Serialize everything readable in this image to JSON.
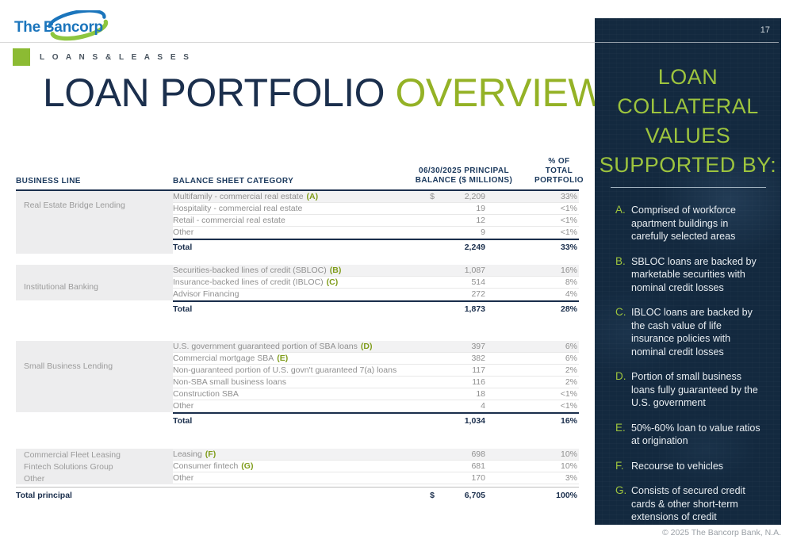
{
  "brand": {
    "logo_the": "The",
    "logo_bancorp": "Bancorp"
  },
  "page_number": "17",
  "section": {
    "label": "L O A N S   &   L E A S E S"
  },
  "title": {
    "part1": "LOAN PORTFOLIO",
    "part2": "OVERVIEW"
  },
  "table": {
    "headers": {
      "business_line": "BUSINESS LINE",
      "balance_sheet_category": "BALANCE SHEET CATEGORY",
      "principal_line1": "06/30/2025 PRINCIPAL",
      "principal_line2": "BALANCE ($ MILLIONS)",
      "pct_line1": "% OF TOTAL",
      "pct_line2": "PORTFOLIO"
    },
    "groups": [
      {
        "business": "Real Estate Bridge Lending",
        "gray_short": false,
        "rows": [
          {
            "category": "Multifamily - commercial real estate",
            "marker": "(A)",
            "currency": "$",
            "value": "2,209",
            "pct": "33%",
            "striped": true
          },
          {
            "category": "Hospitality - commercial real estate",
            "value": "19",
            "pct": "<1%"
          },
          {
            "category": "Retail - commercial real estate",
            "value": "12",
            "pct": "<1%"
          },
          {
            "category": "Other",
            "value": "9",
            "pct": "<1%"
          }
        ],
        "total": {
          "label": "Total",
          "value": "2,249",
          "pct": "33%"
        }
      },
      {
        "business": "Institutional Banking",
        "gray_short": true,
        "rows": [
          {
            "category": "Securities-backed lines of credit (SBLOC)",
            "marker": "(B)",
            "value": "1,087",
            "pct": "16%",
            "striped": true
          },
          {
            "category": "Insurance-backed lines of credit (IBLOC)",
            "marker": "(C)",
            "value": "514",
            "pct": "8%"
          },
          {
            "category": "Advisor Financing",
            "value": "272",
            "pct": "4%"
          }
        ],
        "total": {
          "label": "Total",
          "value": "1,873",
          "pct": "28%"
        }
      },
      {
        "business": "Small Business Lending",
        "gray_short": true,
        "rows": [
          {
            "category": "U.S. government guaranteed portion of SBA loans",
            "marker": "(D)",
            "value": "397",
            "pct": "6%",
            "striped": true
          },
          {
            "category": "Commercial mortgage SBA",
            "marker": "(E)",
            "value": "382",
            "pct": "6%"
          },
          {
            "category": "Non-guaranteed portion of U.S. govn't guaranteed 7(a) loans",
            "value": "117",
            "pct": "2%"
          },
          {
            "category": "Non-SBA small business loans",
            "value": "116",
            "pct": "2%"
          },
          {
            "category": "Construction SBA",
            "value": "18",
            "pct": "<1%"
          },
          {
            "category": "Other",
            "value": "4",
            "pct": "<1%"
          }
        ],
        "total": {
          "label": "Total",
          "value": "1,034",
          "pct": "16%"
        }
      },
      {
        "rows": [
          {
            "business": "Commercial Fleet Leasing",
            "category": "Leasing",
            "marker": "(F)",
            "value": "698",
            "pct": "10%",
            "striped": true
          },
          {
            "business": "Fintech Solutions Group",
            "category": "Consumer fintech",
            "marker": "(G)",
            "value": "681",
            "pct": "10%"
          },
          {
            "business": "Other",
            "category": "Other",
            "value": "170",
            "pct": "3%"
          }
        ]
      }
    ],
    "grand_total": {
      "label": "Total principal",
      "currency": "$",
      "value": "6,705",
      "pct": "100%"
    }
  },
  "sidebar": {
    "title_lines": [
      "LOAN",
      "COLLATERAL",
      "VALUES",
      "SUPPORTED BY:"
    ],
    "items": [
      {
        "letter": "A.",
        "text": "Comprised of workforce apartment buildings in carefully selected areas"
      },
      {
        "letter": "B.",
        "text": "SBLOC loans are backed by marketable securities with nominal credit losses"
      },
      {
        "letter": "C.",
        "text": "IBLOC loans are backed by the cash value of life insurance policies with nominal credit losses"
      },
      {
        "letter": "D.",
        "text": "Portion of small business loans fully guaranteed by the U.S. government"
      },
      {
        "letter": "E.",
        "text": "50%-60% loan to value ratios at origination"
      },
      {
        "letter": "F.",
        "text": "Recourse to vehicles"
      },
      {
        "letter": "G.",
        "text": "Consists of secured credit cards & other short-term extensions of credit"
      }
    ]
  },
  "footer": {
    "copyright": "© 2025 The Bancorp Bank, N.A."
  },
  "colors": {
    "navy": "#1b2f4d",
    "header_navy": "#1c3a5e",
    "green": "#8cbb33",
    "green_dark": "#94b226",
    "marker_green": "#7f9c1a",
    "panel_green": "#9dc43e",
    "panel_bg": "#13293f",
    "logo_blue": "#1b75bc",
    "logo_green": "#8dc63f"
  }
}
